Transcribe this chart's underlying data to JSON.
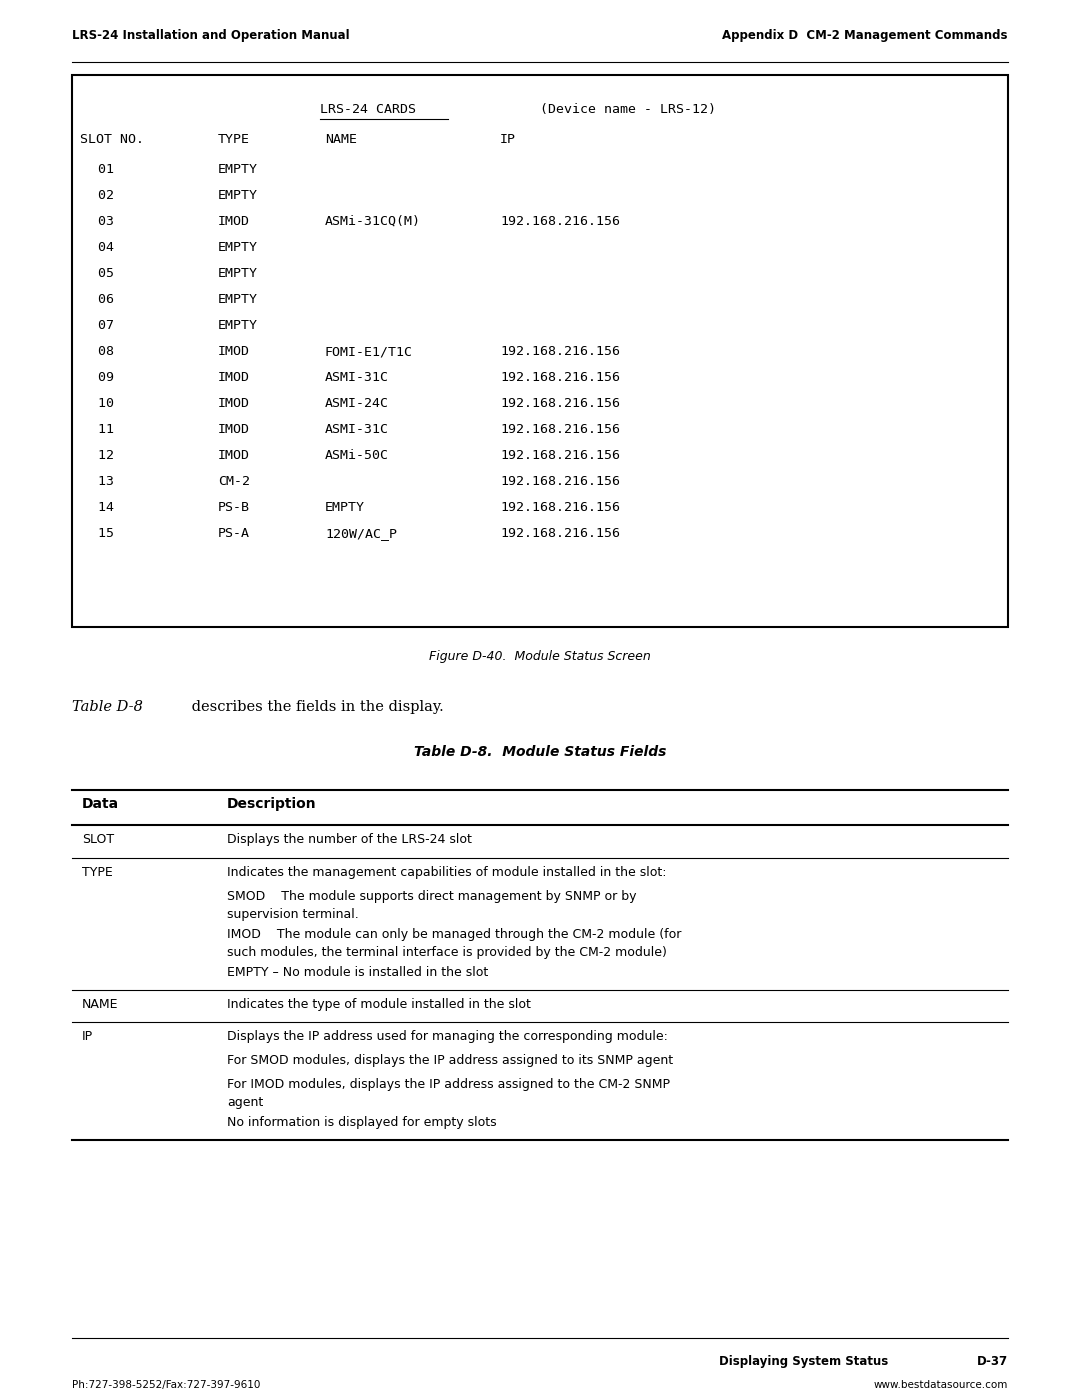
{
  "header_left": "LRS-24 Installation and Operation Manual",
  "header_right": "Appendix D  CM-2 Management Commands",
  "footer_status": "Displaying System Status",
  "footer_page": "D-37",
  "footer_phone": "Ph:727-398-5252/Fax:727-397-9610",
  "footer_web": "www.bestdatasource.com",
  "figure_caption": "Figure D-40.  Module Status Screen",
  "table_title": "Table D-8.  Module Status Fields",
  "terminal_rows": [
    [
      "01",
      "EMPTY",
      "",
      ""
    ],
    [
      "02",
      "EMPTY",
      "",
      ""
    ],
    [
      "03",
      "IMOD",
      "ASMi-31CQ(M)",
      "192.168.216.156"
    ],
    [
      "04",
      "EMPTY",
      "",
      ""
    ],
    [
      "05",
      "EMPTY",
      "",
      ""
    ],
    [
      "06",
      "EMPTY",
      "",
      ""
    ],
    [
      "07",
      "EMPTY",
      "",
      ""
    ],
    [
      "08",
      "IMOD",
      "FOMI-E1/T1C",
      "192.168.216.156"
    ],
    [
      "09",
      "IMOD",
      "ASMI-31C",
      "192.168.216.156"
    ],
    [
      "10",
      "IMOD",
      "ASMI-24C",
      "192.168.216.156"
    ],
    [
      "11",
      "IMOD",
      "ASMI-31C",
      "192.168.216.156"
    ],
    [
      "12",
      "IMOD",
      "ASMi-50C",
      "192.168.216.156"
    ],
    [
      "13",
      "CM-2",
      "",
      "192.168.216.156"
    ],
    [
      "14",
      "PS-B",
      "EMPTY",
      "192.168.216.156"
    ],
    [
      "15",
      "PS-A",
      "120W/AC_P",
      "192.168.216.156"
    ]
  ],
  "bg_color": "#ffffff",
  "mono_font": "DejaVu Sans Mono",
  "serif_font": "DejaVu Serif",
  "sans_font": "DejaVu Sans"
}
